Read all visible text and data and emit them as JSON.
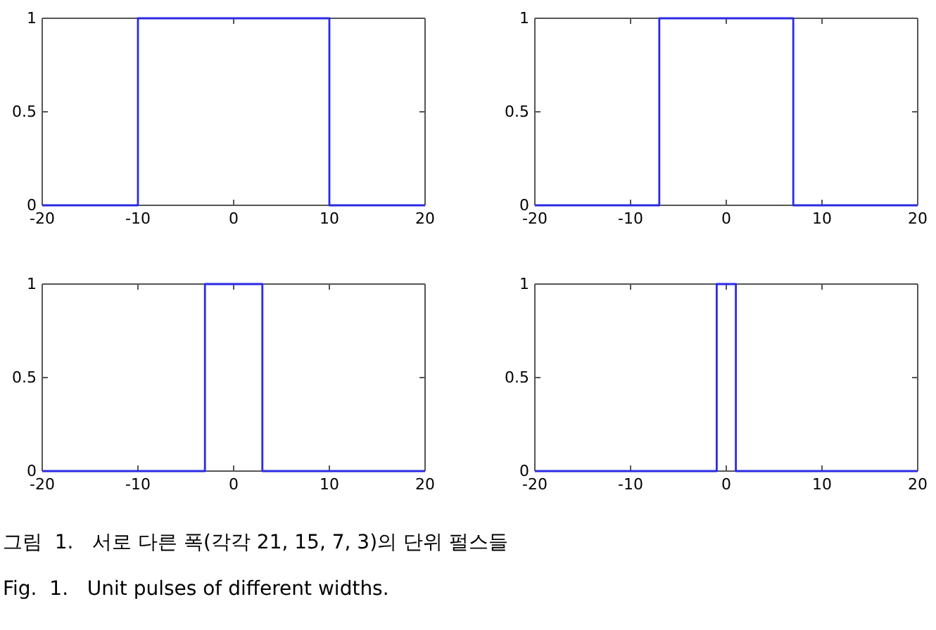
{
  "chart_data": [
    {
      "type": "line",
      "x": [
        -20,
        -10,
        -10,
        10,
        10,
        20
      ],
      "series": [
        {
          "color": "#2a2ae6",
          "values": [
            0,
            0,
            1,
            1,
            0,
            0
          ]
        }
      ],
      "xlim": [
        -20,
        20
      ],
      "xticks": [
        -20,
        -10,
        0,
        10,
        20
      ],
      "ylim": [
        0,
        1
      ],
      "yticks": [
        0,
        0.5,
        1
      ],
      "grid": false
    },
    {
      "type": "line",
      "x": [
        -20,
        -7,
        -7,
        7,
        7,
        20
      ],
      "series": [
        {
          "color": "#2a2ae6",
          "values": [
            0,
            0,
            1,
            1,
            0,
            0
          ]
        }
      ],
      "xlim": [
        -20,
        20
      ],
      "xticks": [
        -20,
        -10,
        0,
        10,
        20
      ],
      "ylim": [
        0,
        1
      ],
      "yticks": [
        0,
        0.5,
        1
      ],
      "grid": false
    },
    {
      "type": "line",
      "x": [
        -20,
        -3,
        -3,
        3,
        3,
        20
      ],
      "series": [
        {
          "color": "#2a2ae6",
          "values": [
            0,
            0,
            1,
            1,
            0,
            0
          ]
        }
      ],
      "xlim": [
        -20,
        20
      ],
      "xticks": [
        -20,
        -10,
        0,
        10,
        20
      ],
      "ylim": [
        0,
        1
      ],
      "yticks": [
        0,
        0.5,
        1
      ],
      "grid": false
    },
    {
      "type": "line",
      "x": [
        -20,
        -1,
        -1,
        1,
        1,
        20
      ],
      "series": [
        {
          "color": "#2a2ae6",
          "values": [
            0,
            0,
            1,
            1,
            0,
            0
          ]
        }
      ],
      "xlim": [
        -20,
        20
      ],
      "xticks": [
        -20,
        -10,
        0,
        10,
        20
      ],
      "ylim": [
        0,
        1
      ],
      "yticks": [
        0,
        0.5,
        1
      ],
      "grid": false,
      "annotations": [
        "그림  1.   서로 다른 폭(각각 21, 15, 7, 3)의 단위 펄스들",
        "Fig.  1.   Unit pulses of different widths."
      ]
    }
  ]
}
